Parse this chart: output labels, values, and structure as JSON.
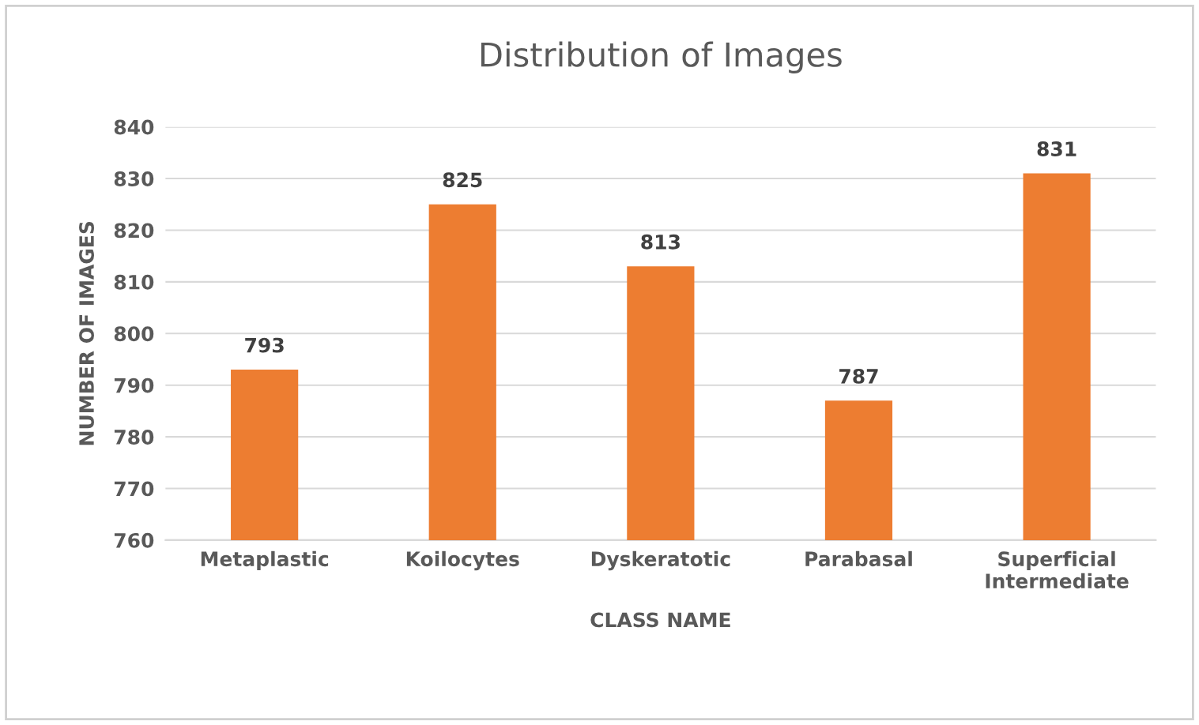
{
  "chart_data": {
    "type": "bar",
    "title": "Distribution of Images",
    "xlabel": "CLASS NAME",
    "ylabel": "NUMBER OF IMAGES",
    "categories": [
      "Metaplastic",
      "Koilocytes",
      "Dyskeratotic",
      "Parabasal",
      "Superficial\nIntermediate"
    ],
    "values": [
      793,
      825,
      813,
      787,
      831
    ],
    "color": "#ed7d31",
    "ylim": [
      760,
      840
    ],
    "yticks": [
      760,
      770,
      780,
      790,
      800,
      810,
      820,
      830,
      840
    ],
    "grid": "y",
    "data_labels": true
  }
}
